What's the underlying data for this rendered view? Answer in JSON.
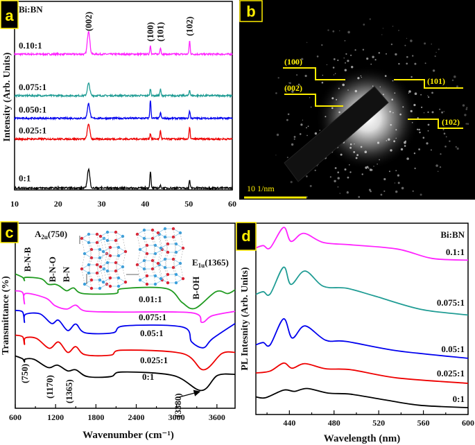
{
  "figure": {
    "panel_labels": [
      "a",
      "b",
      "c",
      "d"
    ],
    "label_box_color": "#000000",
    "label_text_color": "#ffee00"
  },
  "panel_b": {
    "type": "electron-diffraction-image",
    "plane_labels": [
      "(100)",
      "(002)",
      "(101)",
      "(102)"
    ],
    "scale_bar": "10 1/nm",
    "annotation_color": "#ffee00"
  },
  "chart_data": [
    {
      "panel": "a",
      "type": "line",
      "ylabel": "Intensity (Arb. Units)",
      "xlabel": "",
      "xlim": [
        10,
        60
      ],
      "ylim": [
        0,
        100
      ],
      "xticks": [
        "10",
        "20",
        "30",
        "40",
        "50",
        "60"
      ],
      "legend_title": "Bi:BN",
      "peak_labels": [
        {
          "text": "(002)",
          "x": 27.0
        },
        {
          "text": "(100)",
          "x": 41.2
        },
        {
          "text": "(101)",
          "x": 43.5
        },
        {
          "text": "(102)",
          "x": 50.2
        }
      ],
      "series": [
        {
          "name": "0.10:1",
          "color": "#ff22ff",
          "baseline": 72,
          "peaks": [
            [
              27.0,
              12.4
            ],
            [
              41.2,
              4.6
            ],
            [
              43.5,
              3.6
            ],
            [
              50.2,
              7.0
            ]
          ]
        },
        {
          "name": "0.075:1",
          "color": "#1f9c94",
          "baseline": 50,
          "peaks": [
            [
              27.0,
              6.5
            ],
            [
              41.2,
              3.6
            ],
            [
              43.5,
              3.4
            ],
            [
              50.2,
              3.0
            ]
          ]
        },
        {
          "name": "0.050:1",
          "color": "#0000ee",
          "baseline": 38,
          "peaks": [
            [
              27.0,
              7.7
            ],
            [
              41.2,
              9.5
            ],
            [
              43.5,
              3.0
            ],
            [
              50.2,
              4.0
            ]
          ]
        },
        {
          "name": "0.025:1",
          "color": "#ee0000",
          "baseline": 27,
          "peaks": [
            [
              27.0,
              8.0
            ],
            [
              41.2,
              3.0
            ],
            [
              43.5,
              4.4
            ],
            [
              50.2,
              6.0
            ]
          ]
        },
        {
          "name": "0:1",
          "color": "#000000",
          "baseline": 1,
          "peaks": [
            [
              27.0,
              10.0
            ],
            [
              41.2,
              9.0
            ],
            [
              43.5,
              1.2
            ],
            [
              50.2,
              4.0
            ]
          ]
        }
      ]
    },
    {
      "panel": "c",
      "type": "line",
      "ylabel": "Transmittance (%)",
      "xlabel": "Wavenumber (cm⁻¹)",
      "xlim": [
        600,
        3870
      ],
      "ylim": [
        0,
        100
      ],
      "xticks": [
        "600",
        "1200",
        "1800",
        "2400",
        "3000",
        "3600"
      ],
      "modes": [
        {
          "main": "A",
          "sub": "2u",
          "rest": "(750)"
        },
        {
          "main": "E",
          "sub": "1u",
          "rest": "(1365)"
        }
      ],
      "band_labels": [
        "B-N-B",
        "B-N-O",
        "B-N",
        "B-OH"
      ],
      "peak_annotations": [
        "(750)",
        "(1170)",
        "(1365)",
        "(3380)"
      ],
      "series": [
        {
          "name": "0.01:1",
          "color": "#1f9a1f",
          "points": [
            [
              600,
              72.6
            ],
            [
              710,
              70.7
            ],
            [
              737,
              69
            ],
            [
              751,
              70.7
            ],
            [
              985,
              70
            ],
            [
              1090,
              67
            ],
            [
              1193,
              67
            ],
            [
              1260,
              66
            ],
            [
              1364,
              63.5
            ],
            [
              1467,
              65
            ],
            [
              1605,
              62
            ],
            [
              2087,
              62
            ],
            [
              2190,
              64.6
            ],
            [
              2846,
              64.7
            ],
            [
              3087,
              57
            ],
            [
              3276,
              54
            ],
            [
              3586,
              63
            ],
            [
              3760,
              62
            ],
            [
              3870,
              64
            ]
          ]
        },
        {
          "name": "0.075:1",
          "color": "#ff22ff",
          "points": [
            [
              600,
              63.5
            ],
            [
              710,
              62.5
            ],
            [
              737,
              56.4
            ],
            [
              751,
              62
            ],
            [
              1055,
              59.5
            ],
            [
              1193,
              55.4
            ],
            [
              1364,
              53.6
            ],
            [
              1500,
              55.7
            ],
            [
              1640,
              52.6
            ],
            [
              2087,
              52
            ],
            [
              3220,
              51.6
            ],
            [
              3376,
              46.4
            ],
            [
              3530,
              50
            ],
            [
              3870,
              52.4
            ]
          ]
        },
        {
          "name": "0.05:1",
          "color": "#0000ee",
          "points": [
            [
              600,
              52.9
            ],
            [
              710,
              52
            ],
            [
              737,
              46.4
            ],
            [
              751,
              50.7
            ],
            [
              968,
              51
            ],
            [
              1140,
              45.8
            ],
            [
              1243,
              47.6
            ],
            [
              1381,
              42
            ],
            [
              1500,
              45.5
            ],
            [
              1640,
              40.8
            ],
            [
              2053,
              40.8
            ],
            [
              2226,
              44.5
            ],
            [
              3087,
              43.9
            ],
            [
              3225,
              35.8
            ],
            [
              3400,
              32.7
            ],
            [
              3535,
              37.6
            ],
            [
              3870,
              45.8
            ]
          ]
        },
        {
          "name": "0.025:1",
          "color": "#ee0000",
          "points": [
            [
              600,
              39.5
            ],
            [
              710,
              38.6
            ],
            [
              737,
              34.5
            ],
            [
              751,
              38
            ],
            [
              917,
              37.7
            ],
            [
              1106,
              32.4
            ],
            [
              1243,
              35.8
            ],
            [
              1381,
              30.2
            ],
            [
              1500,
              33.3
            ],
            [
              1640,
              28.9
            ],
            [
              2019,
              28.7
            ],
            [
              2190,
              31.4
            ],
            [
              3087,
              29.6
            ],
            [
              3400,
              20.8
            ],
            [
              3674,
              29.6
            ],
            [
              3870,
              30.2
            ]
          ]
        },
        {
          "name": "0:1",
          "color": "#000000",
          "points": [
            [
              600,
              28.3
            ],
            [
              710,
              26.7
            ],
            [
              737,
              25
            ],
            [
              751,
              26.6
            ],
            [
              882,
              26.4
            ],
            [
              1090,
              22
            ],
            [
              1227,
              23.3
            ],
            [
              1381,
              20.2
            ],
            [
              1500,
              20.8
            ],
            [
              1673,
              17.1
            ],
            [
              2019,
              17.1
            ],
            [
              2190,
              19.6
            ],
            [
              2950,
              17.7
            ],
            [
              3366,
              9.6
            ],
            [
              3607,
              17.7
            ],
            [
              3870,
              18.3
            ]
          ]
        }
      ]
    },
    {
      "panel": "d",
      "type": "line",
      "ylabel": "PL Intesnity (Arb. Units)",
      "xlabel": "Wavelength (nm)",
      "xlim": [
        410,
        600
      ],
      "ylim": [
        0,
        100
      ],
      "xticks": [
        "440",
        "480",
        "520",
        "560",
        "600"
      ],
      "legend_title": "Bi:BN",
      "series": [
        {
          "name": "0.1:1",
          "color": "#ff22ff",
          "points": [
            [
              410,
              87.1
            ],
            [
              416.6,
              88.3
            ],
            [
              422.8,
              87.1
            ],
            [
              434.8,
              97.8
            ],
            [
              441.4,
              90.5
            ],
            [
              452.8,
              94.7
            ],
            [
              470.5,
              89.9
            ],
            [
              495,
              88.7
            ],
            [
              536.7,
              86.5
            ],
            [
              567.7,
              81.6
            ],
            [
              600,
              80.7
            ]
          ]
        },
        {
          "name": "0.075:1",
          "color": "#1f9c94",
          "points": [
            [
              410,
              62.8
            ],
            [
              416.6,
              64.2
            ],
            [
              422.8,
              63
            ],
            [
              434.8,
              77
            ],
            [
              441.4,
              68
            ],
            [
              454,
              75
            ],
            [
              470.5,
              67
            ],
            [
              491,
              66
            ],
            [
              516,
              62
            ],
            [
              557.5,
              55
            ],
            [
              600,
              52
            ]
          ]
        },
        {
          "name": "0.05:1",
          "color": "#0000ee",
          "points": [
            [
              410,
              36.4
            ],
            [
              416.6,
              37.6
            ],
            [
              422.8,
              36.4
            ],
            [
              434.8,
              50
            ],
            [
              442.5,
              40
            ],
            [
              454,
              46.3
            ],
            [
              472.6,
              38.8
            ],
            [
              491,
              38.2
            ],
            [
              536.7,
              33.3
            ],
            [
              600,
              29.4
            ]
          ]
        },
        {
          "name": "0.025:1",
          "color": "#ee0000",
          "points": [
            [
              410,
              21.7
            ],
            [
              422.8,
              22.7
            ],
            [
              434.8,
              26.9
            ],
            [
              442.5,
              24.2
            ],
            [
              454,
              26.6
            ],
            [
              472.6,
              23.9
            ],
            [
              495,
              23.4
            ],
            [
              536.7,
              19.1
            ],
            [
              600,
              16.3
            ]
          ]
        },
        {
          "name": "0:1",
          "color": "#000000",
          "points": [
            [
              410,
              9.2
            ],
            [
              418.7,
              8.8
            ],
            [
              435,
              12.8
            ],
            [
              444.5,
              12.1
            ],
            [
              456,
              13.6
            ],
            [
              474.7,
              11.2
            ],
            [
              495,
              10.6
            ],
            [
              526,
              7.6
            ],
            [
              557.5,
              4.8
            ],
            [
              600,
              3.6
            ]
          ]
        }
      ]
    }
  ]
}
